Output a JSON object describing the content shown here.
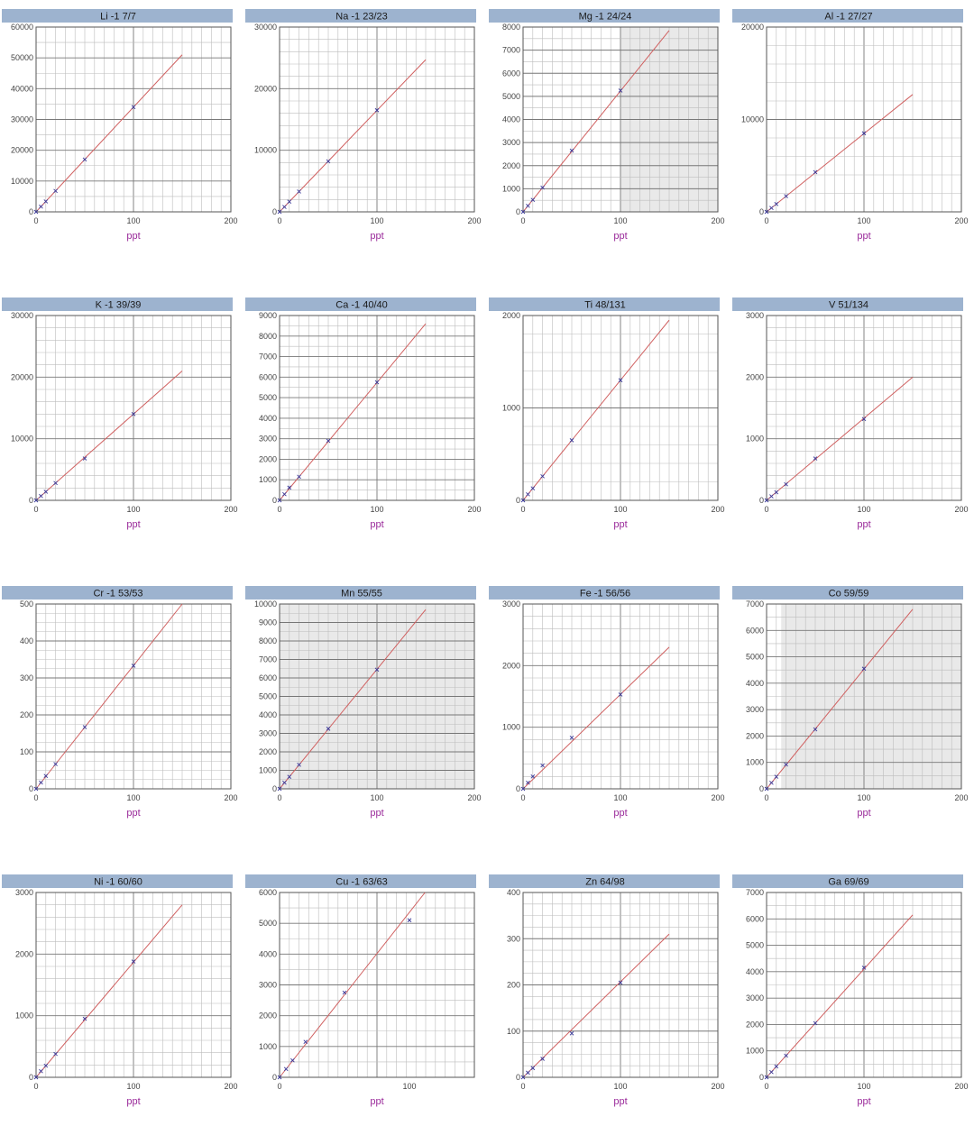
{
  "chart_data": [
    {
      "type": "scatter",
      "title": "Li -1 7/7",
      "xlabel": "ppt",
      "xlim": [
        0,
        200
      ],
      "ylim": [
        0,
        60000
      ],
      "xticks": [
        "0",
        "100",
        "200"
      ],
      "yticks": [
        "0",
        "10000",
        "20000",
        "30000",
        "40000",
        "50000",
        "60000"
      ],
      "points": [
        [
          0,
          0
        ],
        [
          5,
          1700
        ],
        [
          10,
          3400
        ],
        [
          20,
          6800
        ],
        [
          50,
          17000
        ],
        [
          100,
          34000
        ]
      ],
      "fit": [
        [
          0,
          0
        ],
        [
          150,
          51000
        ]
      ],
      "shade": null
    },
    {
      "type": "scatter",
      "title": "Na -1 23/23",
      "xlabel": "ppt",
      "xlim": [
        0,
        200
      ],
      "ylim": [
        0,
        30000
      ],
      "xticks": [
        "0",
        "100",
        "200"
      ],
      "yticks": [
        "0",
        "10000",
        "20000",
        "30000"
      ],
      "points": [
        [
          0,
          0
        ],
        [
          5,
          800
        ],
        [
          10,
          1650
        ],
        [
          20,
          3300
        ],
        [
          50,
          8200
        ],
        [
          100,
          16500
        ]
      ],
      "fit": [
        [
          0,
          0
        ],
        [
          150,
          24700
        ]
      ],
      "shade": null
    },
    {
      "type": "scatter",
      "title": "Mg -1 24/24",
      "xlabel": "ppt",
      "xlim": [
        0,
        200
      ],
      "ylim": [
        0,
        8000
      ],
      "xticks": [
        "0",
        "100",
        "200"
      ],
      "yticks": [
        "0",
        "1000",
        "2000",
        "3000",
        "4000",
        "5000",
        "6000",
        "7000",
        "8000"
      ],
      "points": [
        [
          0,
          0
        ],
        [
          5,
          260
        ],
        [
          10,
          520
        ],
        [
          20,
          1050
        ],
        [
          50,
          2650
        ],
        [
          100,
          5250
        ]
      ],
      "fit": [
        [
          0,
          0
        ],
        [
          150,
          7850
        ]
      ],
      "shade": [
        100,
        200
      ]
    },
    {
      "type": "scatter",
      "title": "Al -1 27/27",
      "xlabel": "ppt",
      "xlim": [
        0,
        200
      ],
      "ylim": [
        0,
        20000
      ],
      "xticks": [
        "0",
        "100",
        "200"
      ],
      "yticks": [
        "0",
        "10000",
        "20000"
      ],
      "points": [
        [
          0,
          0
        ],
        [
          5,
          420
        ],
        [
          10,
          850
        ],
        [
          20,
          1700
        ],
        [
          50,
          4300
        ],
        [
          100,
          8500
        ]
      ],
      "fit": [
        [
          0,
          0
        ],
        [
          150,
          12700
        ]
      ],
      "shade": null
    },
    {
      "type": "scatter",
      "title": "K -1 39/39",
      "xlabel": "ppt",
      "xlim": [
        0,
        200
      ],
      "ylim": [
        0,
        30000
      ],
      "xticks": [
        "0",
        "100",
        "200"
      ],
      "yticks": [
        "0",
        "10000",
        "20000",
        "30000"
      ],
      "points": [
        [
          0,
          0
        ],
        [
          5,
          700
        ],
        [
          10,
          1400
        ],
        [
          20,
          2800
        ],
        [
          50,
          6800
        ],
        [
          100,
          14000
        ]
      ],
      "fit": [
        [
          0,
          0
        ],
        [
          150,
          21000
        ]
      ],
      "shade": null
    },
    {
      "type": "scatter",
      "title": "Ca -1 40/40",
      "xlabel": "ppt",
      "xlim": [
        0,
        200
      ],
      "ylim": [
        0,
        9000
      ],
      "xticks": [
        "0",
        "100",
        "200"
      ],
      "yticks": [
        "0",
        "1000",
        "2000",
        "3000",
        "4000",
        "5000",
        "6000",
        "7000",
        "8000",
        "9000"
      ],
      "points": [
        [
          0,
          0
        ],
        [
          5,
          300
        ],
        [
          10,
          620
        ],
        [
          20,
          1150
        ],
        [
          50,
          2900
        ],
        [
          100,
          5750
        ]
      ],
      "fit": [
        [
          0,
          0
        ],
        [
          150,
          8600
        ]
      ],
      "shade": null
    },
    {
      "type": "scatter",
      "title": "Ti 48/131",
      "xlabel": "ppt",
      "xlim": [
        0,
        200
      ],
      "ylim": [
        0,
        2000
      ],
      "xticks": [
        "0",
        "100",
        "200"
      ],
      "yticks": [
        "0",
        "1000",
        "2000"
      ],
      "points": [
        [
          0,
          0
        ],
        [
          5,
          65
        ],
        [
          10,
          130
        ],
        [
          20,
          260
        ],
        [
          50,
          650
        ],
        [
          100,
          1300
        ]
      ],
      "fit": [
        [
          0,
          0
        ],
        [
          150,
          1950
        ]
      ],
      "shade": null
    },
    {
      "type": "scatter",
      "title": "V 51/134",
      "xlabel": "ppt",
      "xlim": [
        0,
        200
      ],
      "ylim": [
        0,
        3000
      ],
      "xticks": [
        "0",
        "100",
        "200"
      ],
      "yticks": [
        "0",
        "1000",
        "2000",
        "3000"
      ],
      "points": [
        [
          0,
          0
        ],
        [
          5,
          65
        ],
        [
          10,
          130
        ],
        [
          20,
          260
        ],
        [
          50,
          680
        ],
        [
          100,
          1320
        ]
      ],
      "fit": [
        [
          0,
          0
        ],
        [
          150,
          2000
        ]
      ],
      "shade": null
    },
    {
      "type": "scatter",
      "title": "Cr -1 53/53",
      "xlabel": "ppt",
      "xlim": [
        0,
        200
      ],
      "ylim": [
        0,
        500
      ],
      "xticks": [
        "0",
        "100",
        "200"
      ],
      "yticks": [
        "0",
        "100",
        "200",
        "300",
        "400",
        "500"
      ],
      "points": [
        [
          0,
          0
        ],
        [
          5,
          17
        ],
        [
          10,
          35
        ],
        [
          20,
          67
        ],
        [
          50,
          167
        ],
        [
          100,
          333
        ]
      ],
      "fit": [
        [
          0,
          0
        ],
        [
          150,
          500
        ]
      ],
      "shade": null
    },
    {
      "type": "scatter",
      "title": "Mn 55/55",
      "xlabel": "ppt",
      "xlim": [
        0,
        200
      ],
      "ylim": [
        0,
        10000
      ],
      "xticks": [
        "0",
        "100",
        "200"
      ],
      "yticks": [
        "0",
        "1000",
        "2000",
        "3000",
        "4000",
        "5000",
        "6000",
        "7000",
        "8000",
        "9000",
        "10000"
      ],
      "points": [
        [
          0,
          0
        ],
        [
          5,
          330
        ],
        [
          10,
          650
        ],
        [
          20,
          1300
        ],
        [
          50,
          3250
        ],
        [
          100,
          6450
        ]
      ],
      "fit": [
        [
          0,
          0
        ],
        [
          150,
          9700
        ]
      ],
      "shade": [
        0,
        200
      ]
    },
    {
      "type": "scatter",
      "title": "Fe -1 56/56",
      "xlabel": "ppt",
      "xlim": [
        0,
        200
      ],
      "ylim": [
        0,
        3000
      ],
      "xticks": [
        "0",
        "100",
        "200"
      ],
      "yticks": [
        "0",
        "1000",
        "2000",
        "3000"
      ],
      "points": [
        [
          0,
          0
        ],
        [
          5,
          100
        ],
        [
          10,
          200
        ],
        [
          20,
          380
        ],
        [
          50,
          830
        ],
        [
          100,
          1530
        ]
      ],
      "fit": [
        [
          0,
          0
        ],
        [
          150,
          2300
        ]
      ],
      "shade": null
    },
    {
      "type": "scatter",
      "title": "Co 59/59",
      "xlabel": "ppt",
      "xlim": [
        0,
        200
      ],
      "ylim": [
        0,
        7000
      ],
      "xticks": [
        "0",
        "100",
        "200"
      ],
      "yticks": [
        "0",
        "1000",
        "2000",
        "3000",
        "4000",
        "5000",
        "6000",
        "7000"
      ],
      "points": [
        [
          0,
          0
        ],
        [
          5,
          230
        ],
        [
          10,
          460
        ],
        [
          20,
          920
        ],
        [
          50,
          2250
        ],
        [
          100,
          4550
        ]
      ],
      "fit": [
        [
          0,
          0
        ],
        [
          150,
          6800
        ]
      ],
      "shade": [
        15,
        200
      ]
    },
    {
      "type": "scatter",
      "title": "Ni -1 60/60",
      "xlabel": "ppt",
      "xlim": [
        0,
        200
      ],
      "ylim": [
        0,
        3000
      ],
      "xticks": [
        "0",
        "100",
        "200"
      ],
      "yticks": [
        "0",
        "1000",
        "2000",
        "3000"
      ],
      "points": [
        [
          0,
          0
        ],
        [
          5,
          100
        ],
        [
          10,
          190
        ],
        [
          20,
          380
        ],
        [
          50,
          950
        ],
        [
          100,
          1880
        ]
      ],
      "fit": [
        [
          0,
          0
        ],
        [
          150,
          2800
        ]
      ],
      "shade": null
    },
    {
      "type": "scatter",
      "title": "Cu -1 63/63",
      "xlabel": "ppt",
      "xlim": [
        0,
        150
      ],
      "ylim": [
        0,
        6000
      ],
      "xticks": [
        "0",
        "100"
      ],
      "yticks": [
        "0",
        "1000",
        "2000",
        "3000",
        "4000",
        "5000",
        "6000"
      ],
      "points": [
        [
          0,
          0
        ],
        [
          5,
          270
        ],
        [
          10,
          550
        ],
        [
          20,
          1150
        ],
        [
          50,
          2750
        ],
        [
          100,
          5100
        ]
      ],
      "fit": [
        [
          0,
          0
        ],
        [
          112,
          6000
        ]
      ],
      "shade": null
    },
    {
      "type": "scatter",
      "title": "Zn 64/98",
      "xlabel": "ppt",
      "xlim": [
        0,
        200
      ],
      "ylim": [
        0,
        400
      ],
      "xticks": [
        "0",
        "100",
        "200"
      ],
      "yticks": [
        "0",
        "100",
        "200",
        "300",
        "400"
      ],
      "points": [
        [
          0,
          0
        ],
        [
          5,
          10
        ],
        [
          10,
          20
        ],
        [
          20,
          40
        ],
        [
          50,
          95
        ],
        [
          100,
          205
        ]
      ],
      "fit": [
        [
          0,
          0
        ],
        [
          150,
          310
        ]
      ],
      "shade": null
    },
    {
      "type": "scatter",
      "title": "Ga 69/69",
      "xlabel": "ppt",
      "xlim": [
        0,
        200
      ],
      "ylim": [
        0,
        7000
      ],
      "xticks": [
        "0",
        "100",
        "200"
      ],
      "yticks": [
        "0",
        "1000",
        "2000",
        "3000",
        "4000",
        "5000",
        "6000",
        "7000"
      ],
      "points": [
        [
          0,
          0
        ],
        [
          5,
          200
        ],
        [
          10,
          410
        ],
        [
          20,
          820
        ],
        [
          50,
          2050
        ],
        [
          100,
          4150
        ]
      ],
      "fit": [
        [
          0,
          0
        ],
        [
          150,
          6150
        ]
      ],
      "shade": null
    }
  ]
}
